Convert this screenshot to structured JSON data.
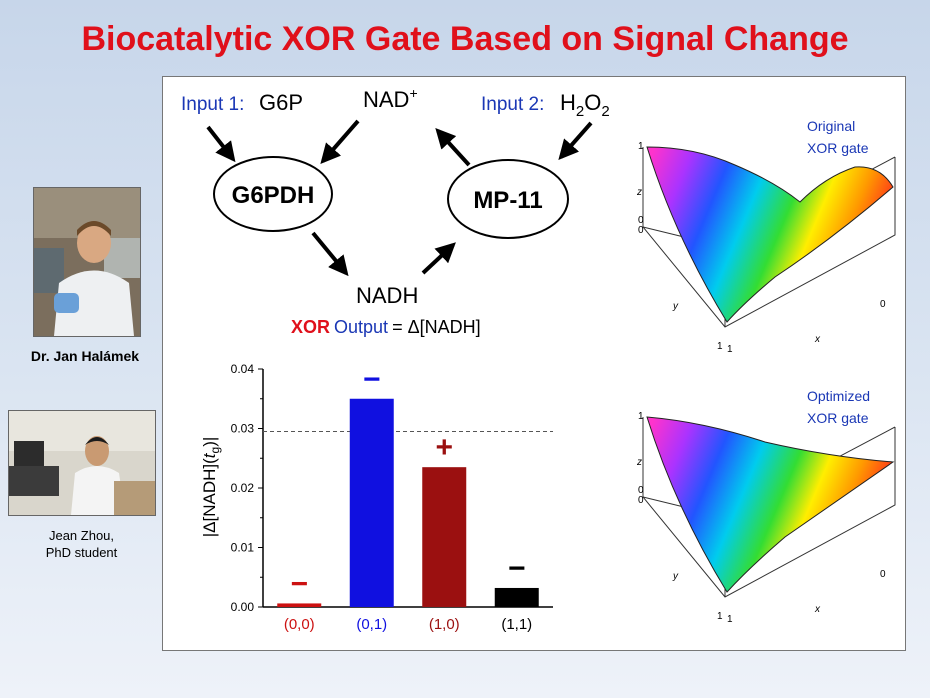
{
  "title": "Biocatalytic XOR Gate Based on Signal Change",
  "people": [
    {
      "caption": "Dr. Jan Halámek"
    },
    {
      "caption_line1": "Jean Zhou,",
      "caption_line2": "PhD student"
    }
  ],
  "scheme": {
    "input1_label": "Input 1:",
    "input1_value": "G6P",
    "nad_plus": "NAD",
    "nad_plus_sup": "+",
    "input2_label": "Input 2:",
    "input2_h": "H",
    "input2_sub2": "2",
    "input2_o": "O",
    "input2_sub2b": "2",
    "enzyme1": "G6PDH",
    "enzyme2": "MP-11",
    "nadh": "NADH",
    "output_xor": "XOR",
    "output_label": "Output",
    "output_eq": "= Δ[NADH]"
  },
  "chart_data": {
    "type": "bar",
    "categories": [
      "(0,0)",
      "(0,1)",
      "(1,0)",
      "(1,1)"
    ],
    "values": [
      0.0006,
      0.035,
      0.0235,
      0.0032
    ],
    "bar_colors": [
      "#cc1111",
      "#1010e0",
      "#9b1010",
      "#000000"
    ],
    "category_colors": [
      "#cc1111",
      "#1010e0",
      "#9b1010",
      "#000000"
    ],
    "signs": [
      "−",
      "−",
      "+",
      "−"
    ],
    "ylabel": "|Δ[NADH](t_g)|",
    "ylim": [
      0,
      0.04
    ],
    "yticks": [
      "0.00",
      "0.01",
      "0.02",
      "0.03",
      "0.04"
    ],
    "threshold": 0.0295
  },
  "surfaces": [
    {
      "label_line1": "Original",
      "label_line2": "XOR gate",
      "z_top": "1",
      "z_label": "z",
      "zero1": "0",
      "zero2": "0",
      "y_label": "y",
      "x_label": "x",
      "one_a": "1",
      "one_b": "1",
      "x_zero": "0"
    },
    {
      "label_line1": "Optimized",
      "label_line2": "XOR gate",
      "z_top": "1",
      "z_label": "z",
      "zero1": "0",
      "zero2": "0",
      "y_label": "y",
      "x_label": "x",
      "one_a": "1",
      "one_b": "1",
      "x_zero": "0"
    }
  ],
  "colors": {
    "title": "#e0101b",
    "input_blue": "#1a37b5"
  }
}
